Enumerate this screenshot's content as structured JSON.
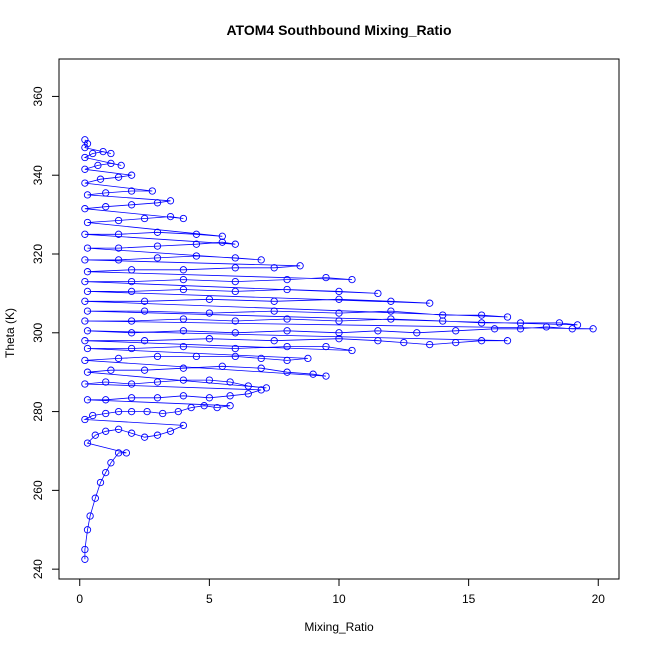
{
  "chart_data": {
    "type": "scatter",
    "title": "ATOM4 Southbound Mixing_Ratio",
    "xlabel": "Mixing_Ratio",
    "ylabel": "Theta (K)",
    "xlim": [
      -0.8,
      20.8
    ],
    "ylim": [
      237.5,
      369.5
    ],
    "x_ticks": [
      0,
      5,
      10,
      15,
      20
    ],
    "y_ticks": [
      240,
      260,
      280,
      300,
      320,
      340,
      360
    ],
    "grid": false,
    "legend": "none",
    "point_color": "#0000ff",
    "marker": "open-circle",
    "connected": true,
    "series": [
      {
        "name": "",
        "points": [
          [
            0.2,
            242.5
          ],
          [
            0.2,
            245.0
          ],
          [
            0.3,
            250.0
          ],
          [
            0.4,
            253.5
          ],
          [
            0.6,
            258.0
          ],
          [
            0.8,
            262.0
          ],
          [
            1.0,
            264.5
          ],
          [
            1.2,
            267.0
          ],
          [
            1.5,
            269.5
          ],
          [
            1.8,
            269.5
          ],
          [
            0.3,
            272.0
          ],
          [
            0.6,
            274.0
          ],
          [
            1.0,
            275.0
          ],
          [
            1.5,
            275.5
          ],
          [
            2.0,
            274.5
          ],
          [
            2.5,
            273.5
          ],
          [
            3.0,
            274.0
          ],
          [
            3.5,
            275.0
          ],
          [
            4.0,
            276.5
          ],
          [
            0.2,
            278.0
          ],
          [
            0.5,
            279.0
          ],
          [
            1.0,
            279.5
          ],
          [
            1.5,
            280.0
          ],
          [
            2.0,
            280.0
          ],
          [
            2.6,
            280.0
          ],
          [
            3.2,
            279.5
          ],
          [
            3.8,
            280.0
          ],
          [
            4.3,
            281.0
          ],
          [
            4.8,
            281.5
          ],
          [
            5.3,
            281.0
          ],
          [
            5.8,
            281.5
          ],
          [
            0.3,
            283.0
          ],
          [
            1.0,
            283.0
          ],
          [
            2.0,
            283.5
          ],
          [
            3.0,
            283.5
          ],
          [
            4.0,
            284.0
          ],
          [
            5.0,
            283.5
          ],
          [
            5.8,
            284.0
          ],
          [
            6.5,
            284.5
          ],
          [
            7.0,
            285.5
          ],
          [
            0.2,
            287.0
          ],
          [
            1.0,
            287.5
          ],
          [
            2.0,
            287.0
          ],
          [
            3.0,
            287.5
          ],
          [
            4.0,
            288.0
          ],
          [
            5.0,
            288.0
          ],
          [
            5.8,
            287.5
          ],
          [
            6.5,
            286.5
          ],
          [
            7.2,
            286.0
          ],
          [
            0.3,
            290.0
          ],
          [
            1.2,
            290.5
          ],
          [
            2.5,
            290.5
          ],
          [
            4.0,
            291.0
          ],
          [
            5.5,
            291.5
          ],
          [
            7.0,
            291.0
          ],
          [
            8.0,
            290.0
          ],
          [
            9.0,
            289.5
          ],
          [
            9.5,
            289.0
          ],
          [
            0.2,
            293.0
          ],
          [
            1.5,
            293.5
          ],
          [
            3.0,
            294.0
          ],
          [
            4.5,
            294.0
          ],
          [
            6.0,
            294.0
          ],
          [
            7.0,
            293.5
          ],
          [
            8.0,
            293.0
          ],
          [
            8.8,
            293.5
          ],
          [
            0.3,
            296.0
          ],
          [
            2.0,
            296.0
          ],
          [
            4.0,
            296.5
          ],
          [
            6.0,
            296.0
          ],
          [
            8.0,
            296.5
          ],
          [
            9.5,
            296.5
          ],
          [
            10.5,
            295.5
          ],
          [
            0.2,
            298.0
          ],
          [
            2.5,
            298.0
          ],
          [
            5.0,
            298.5
          ],
          [
            7.5,
            298.0
          ],
          [
            10.0,
            298.5
          ],
          [
            11.5,
            298.0
          ],
          [
            12.5,
            297.5
          ],
          [
            13.5,
            297.0
          ],
          [
            14.5,
            297.5
          ],
          [
            15.5,
            298.0
          ],
          [
            16.5,
            298.0
          ],
          [
            0.3,
            300.5
          ],
          [
            2.0,
            300.0
          ],
          [
            4.0,
            300.5
          ],
          [
            6.0,
            300.0
          ],
          [
            8.0,
            300.5
          ],
          [
            10.0,
            300.0
          ],
          [
            11.5,
            300.5
          ],
          [
            13.0,
            300.0
          ],
          [
            14.5,
            300.5
          ],
          [
            16.0,
            301.0
          ],
          [
            17.0,
            301.0
          ],
          [
            18.0,
            301.5
          ],
          [
            19.0,
            301.0
          ],
          [
            19.8,
            301.0
          ],
          [
            0.2,
            303.0
          ],
          [
            2.0,
            303.0
          ],
          [
            4.0,
            303.5
          ],
          [
            6.0,
            303.0
          ],
          [
            8.0,
            303.5
          ],
          [
            10.0,
            303.0
          ],
          [
            12.0,
            303.5
          ],
          [
            14.0,
            303.0
          ],
          [
            15.5,
            302.5
          ],
          [
            17.0,
            302.5
          ],
          [
            18.5,
            302.5
          ],
          [
            19.2,
            302.0
          ],
          [
            0.3,
            305.5
          ],
          [
            2.5,
            305.5
          ],
          [
            5.0,
            305.0
          ],
          [
            7.5,
            305.5
          ],
          [
            10.0,
            305.0
          ],
          [
            12.0,
            305.5
          ],
          [
            14.0,
            304.5
          ],
          [
            15.5,
            304.5
          ],
          [
            16.5,
            304.0
          ],
          [
            0.2,
            308.0
          ],
          [
            2.5,
            308.0
          ],
          [
            5.0,
            308.5
          ],
          [
            7.5,
            308.0
          ],
          [
            10.0,
            308.5
          ],
          [
            12.0,
            308.0
          ],
          [
            13.5,
            307.5
          ],
          [
            0.3,
            310.5
          ],
          [
            2.0,
            310.5
          ],
          [
            4.0,
            311.0
          ],
          [
            6.0,
            310.5
          ],
          [
            8.0,
            311.0
          ],
          [
            10.0,
            310.5
          ],
          [
            11.5,
            310.0
          ],
          [
            0.2,
            313.0
          ],
          [
            2.0,
            313.0
          ],
          [
            4.0,
            313.5
          ],
          [
            6.0,
            313.0
          ],
          [
            8.0,
            313.5
          ],
          [
            9.5,
            314.0
          ],
          [
            10.5,
            313.5
          ],
          [
            0.3,
            315.5
          ],
          [
            2.0,
            316.0
          ],
          [
            4.0,
            316.0
          ],
          [
            6.0,
            316.5
          ],
          [
            7.5,
            316.5
          ],
          [
            8.5,
            317.0
          ],
          [
            0.2,
            318.5
          ],
          [
            1.5,
            318.5
          ],
          [
            3.0,
            319.0
          ],
          [
            4.5,
            319.5
          ],
          [
            6.0,
            319.0
          ],
          [
            7.0,
            318.5
          ],
          [
            0.3,
            321.5
          ],
          [
            1.5,
            321.5
          ],
          [
            3.0,
            322.0
          ],
          [
            4.5,
            322.5
          ],
          [
            5.5,
            323.0
          ],
          [
            6.0,
            322.5
          ],
          [
            0.2,
            325.0
          ],
          [
            1.5,
            325.0
          ],
          [
            3.0,
            325.5
          ],
          [
            4.5,
            325.0
          ],
          [
            5.5,
            324.5
          ],
          [
            0.3,
            328.0
          ],
          [
            1.5,
            328.5
          ],
          [
            2.5,
            329.0
          ],
          [
            3.5,
            329.5
          ],
          [
            4.0,
            329.0
          ],
          [
            0.2,
            331.5
          ],
          [
            1.0,
            332.0
          ],
          [
            2.0,
            332.5
          ],
          [
            3.0,
            333.0
          ],
          [
            3.5,
            333.5
          ],
          [
            0.3,
            335.0
          ],
          [
            1.0,
            335.5
          ],
          [
            2.0,
            336.0
          ],
          [
            2.8,
            336.0
          ],
          [
            0.2,
            338.0
          ],
          [
            0.8,
            339.0
          ],
          [
            1.5,
            339.5
          ],
          [
            2.0,
            340.0
          ],
          [
            0.2,
            341.5
          ],
          [
            0.7,
            342.5
          ],
          [
            1.2,
            343.0
          ],
          [
            1.6,
            342.5
          ],
          [
            0.2,
            344.5
          ],
          [
            0.5,
            345.5
          ],
          [
            0.9,
            346.0
          ],
          [
            1.2,
            345.5
          ],
          [
            0.2,
            347.0
          ],
          [
            0.3,
            348.0
          ],
          [
            0.2,
            349.0
          ]
        ]
      }
    ]
  }
}
